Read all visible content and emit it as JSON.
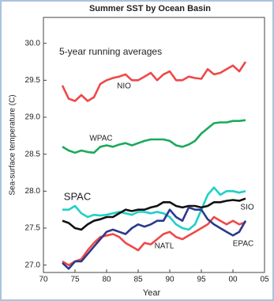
{
  "chart_data": {
    "type": "line",
    "title": "Summer SST by Ocean Basin",
    "annotation": "5-year running averages",
    "x_label": "Year",
    "y_label": "Sea-surface temperature (C)",
    "x": [
      1973,
      1974,
      1975,
      1976,
      1977,
      1978,
      1979,
      1980,
      1981,
      1982,
      1983,
      1984,
      1985,
      1986,
      1987,
      1988,
      1989,
      1990,
      1991,
      1992,
      1993,
      1994,
      1995,
      1996,
      1997,
      1998,
      1999,
      2000,
      2001,
      2002
    ],
    "xlim": [
      1970,
      2005
    ],
    "xticks": [
      {
        "value": 1970,
        "label": "70"
      },
      {
        "value": 1975,
        "label": "75"
      },
      {
        "value": 1980,
        "label": "80"
      },
      {
        "value": 1985,
        "label": "85"
      },
      {
        "value": 1990,
        "label": "90"
      },
      {
        "value": 1995,
        "label": "95"
      },
      {
        "value": 2000,
        "label": "00"
      },
      {
        "value": 2005,
        "label": "05"
      }
    ],
    "ylim": [
      26.9,
      30.35
    ],
    "yticks": [
      {
        "value": 27,
        "label": "27.0"
      },
      27.5,
      {
        "value": 28,
        "label": "28.0"
      },
      28.5,
      {
        "value": 29,
        "label": "29.0"
      },
      29.5,
      {
        "value": 30,
        "label": "30.0"
      }
    ],
    "series": [
      {
        "name": "NIO",
        "color": "#f04848",
        "values": [
          29.43,
          29.25,
          29.22,
          29.3,
          29.22,
          29.27,
          29.45,
          29.5,
          29.53,
          29.55,
          29.58,
          29.5,
          29.5,
          29.55,
          29.6,
          29.5,
          29.58,
          29.62,
          29.5,
          29.5,
          29.55,
          29.53,
          29.52,
          29.65,
          29.58,
          29.6,
          29.65,
          29.7,
          29.62,
          29.75
        ]
      },
      {
        "name": "WPAC",
        "color": "#1aaa5a",
        "values": [
          28.6,
          28.55,
          28.52,
          28.55,
          28.53,
          28.52,
          28.6,
          28.62,
          28.6,
          28.63,
          28.65,
          28.62,
          28.65,
          28.68,
          28.7,
          28.7,
          28.7,
          28.68,
          28.62,
          28.6,
          28.63,
          28.68,
          28.78,
          28.85,
          28.92,
          28.93,
          28.93,
          28.95,
          28.95,
          28.96
        ]
      },
      {
        "name": "SPAC",
        "color": "#20d0c8",
        "values": [
          27.75,
          27.75,
          27.8,
          27.7,
          27.65,
          27.68,
          27.67,
          27.68,
          27.7,
          27.72,
          27.7,
          27.68,
          27.72,
          27.72,
          27.7,
          27.72,
          27.7,
          27.65,
          27.55,
          27.5,
          27.48,
          27.55,
          27.75,
          27.95,
          28.05,
          27.95,
          28.0,
          28.0,
          27.98,
          28.0
        ]
      },
      {
        "name": "SIO",
        "color": "#111111",
        "values": [
          27.6,
          27.57,
          27.5,
          27.48,
          27.55,
          27.6,
          27.62,
          27.65,
          27.65,
          27.7,
          27.75,
          27.73,
          27.75,
          27.75,
          27.78,
          27.8,
          27.85,
          27.85,
          27.8,
          27.78,
          27.8,
          27.8,
          27.78,
          27.8,
          27.85,
          27.85,
          27.87,
          27.88,
          27.87,
          27.9
        ]
      },
      {
        "name": "NATL",
        "color": "#f04848",
        "values": [
          27.05,
          27.0,
          27.05,
          27.08,
          27.2,
          27.3,
          27.38,
          27.4,
          27.42,
          27.38,
          27.3,
          27.25,
          27.2,
          27.3,
          27.28,
          27.35,
          27.42,
          27.45,
          27.38,
          27.35,
          27.4,
          27.45,
          27.5,
          27.55,
          27.65,
          27.6,
          27.55,
          27.6,
          27.55,
          27.58
        ]
      },
      {
        "name": "EPAC",
        "color": "#2a3a8c",
        "values": [
          27.03,
          26.95,
          27.05,
          27.05,
          27.15,
          27.25,
          27.35,
          27.45,
          27.48,
          27.45,
          27.42,
          27.5,
          27.55,
          27.52,
          27.55,
          27.6,
          27.6,
          27.75,
          27.65,
          27.6,
          27.78,
          27.75,
          27.75,
          27.62,
          27.55,
          27.5,
          27.45,
          27.4,
          27.45,
          27.6
        ]
      }
    ]
  }
}
